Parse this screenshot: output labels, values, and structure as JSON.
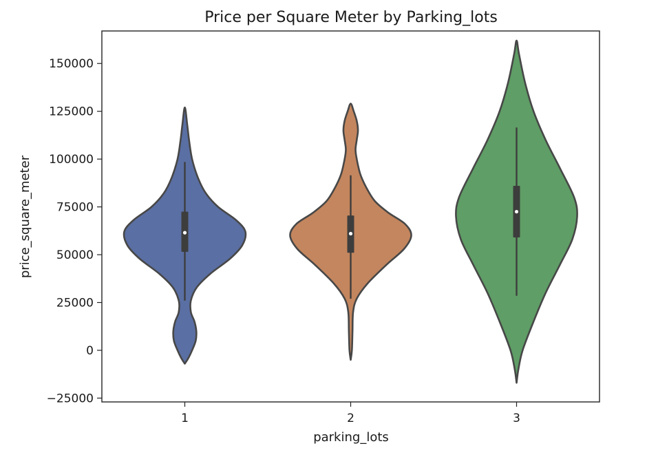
{
  "chart_data": {
    "type": "violin",
    "title": "Price per Square Meter by Parking_lots",
    "xlabel": "parking_lots",
    "ylabel": "price_square_meter",
    "ylim": [
      -27000,
      167000
    ],
    "yticks": [
      -25000,
      0,
      25000,
      50000,
      75000,
      100000,
      125000,
      150000
    ],
    "ytick_labels": [
      "−25000",
      "0",
      "25000",
      "50000",
      "75000",
      "100000",
      "125000",
      "150000"
    ],
    "categories": [
      "1",
      "2",
      "3"
    ],
    "grid": false,
    "violins": [
      {
        "category": "1",
        "color": "#5a6fa3",
        "min": 26000,
        "q1": 51500,
        "median": 61500,
        "q3": 72500,
        "max": 98500,
        "density": [
          [
            -7000,
            0
          ],
          [
            -4000,
            0.06
          ],
          [
            0,
            0.12
          ],
          [
            5000,
            0.18
          ],
          [
            10000,
            0.19
          ],
          [
            15000,
            0.16
          ],
          [
            20000,
            0.1
          ],
          [
            26000,
            0.1
          ],
          [
            33000,
            0.2
          ],
          [
            40000,
            0.42
          ],
          [
            48000,
            0.75
          ],
          [
            55000,
            0.95
          ],
          [
            62000,
            1.0
          ],
          [
            68000,
            0.85
          ],
          [
            75000,
            0.55
          ],
          [
            82000,
            0.35
          ],
          [
            90000,
            0.22
          ],
          [
            100000,
            0.12
          ],
          [
            110000,
            0.07
          ],
          [
            118000,
            0.04
          ],
          [
            127000,
            0
          ]
        ]
      },
      {
        "category": "2",
        "color": "#c4865e",
        "min": 27000,
        "q1": 51000,
        "median": 61000,
        "q3": 70500,
        "max": 91500,
        "density": [
          [
            -5000,
            0
          ],
          [
            0,
            0.02
          ],
          [
            10000,
            0.03
          ],
          [
            20000,
            0.04
          ],
          [
            27000,
            0.1
          ],
          [
            35000,
            0.28
          ],
          [
            45000,
            0.6
          ],
          [
            53000,
            0.88
          ],
          [
            60000,
            1.0
          ],
          [
            66000,
            0.9
          ],
          [
            72000,
            0.62
          ],
          [
            78000,
            0.4
          ],
          [
            85000,
            0.26
          ],
          [
            92000,
            0.16
          ],
          [
            100000,
            0.1
          ],
          [
            105000,
            0.08
          ],
          [
            110000,
            0.1
          ],
          [
            115000,
            0.12
          ],
          [
            120000,
            0.1
          ],
          [
            125000,
            0.05
          ],
          [
            129000,
            0
          ]
        ]
      },
      {
        "category": "3",
        "color": "#5f9e66",
        "min": 28500,
        "q1": 59000,
        "median": 72500,
        "q3": 86000,
        "max": 116500,
        "density": [
          [
            -17000,
            0
          ],
          [
            -10000,
            0.03
          ],
          [
            0,
            0.1
          ],
          [
            15000,
            0.28
          ],
          [
            30000,
            0.48
          ],
          [
            45000,
            0.72
          ],
          [
            58000,
            0.92
          ],
          [
            70000,
            1.0
          ],
          [
            80000,
            0.95
          ],
          [
            95000,
            0.72
          ],
          [
            110000,
            0.48
          ],
          [
            125000,
            0.28
          ],
          [
            140000,
            0.14
          ],
          [
            155000,
            0.04
          ],
          [
            162000,
            0
          ]
        ]
      }
    ]
  }
}
